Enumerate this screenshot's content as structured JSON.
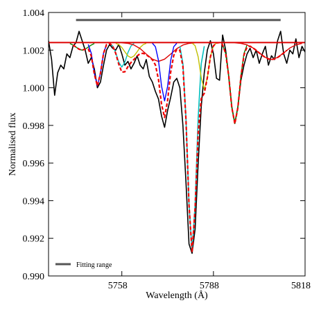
{
  "chart_data": {
    "type": "line",
    "x_label": "Wavelength (Å)",
    "y_label": "Normalised flux",
    "xlim": [
      5734,
      5818
    ],
    "ylim": [
      0.99,
      1.004
    ],
    "xticks": [
      5758,
      5788,
      5818
    ],
    "yticks": [
      {
        "value": 0.99,
        "label": "0.990"
      },
      0.992,
      0.994,
      0.996,
      0.998,
      {
        "value": 1,
        "label": "1.000"
      },
      1.002,
      1.004
    ],
    "legend": "lower left",
    "series": [
      {
        "color": "#000000",
        "style": "solid",
        "width": 1.6,
        "x": [
          5734,
          5735,
          5736,
          5737,
          5738,
          5739,
          5740,
          5741,
          5742,
          5743,
          5744,
          5745,
          5746,
          5747,
          5748,
          5749,
          5750,
          5751,
          5752,
          5753,
          5754,
          5755,
          5756,
          5757,
          5758,
          5759,
          5760,
          5761,
          5762,
          5763,
          5764,
          5765,
          5766,
          5767,
          5768,
          5769,
          5770,
          5771,
          5772,
          5773,
          5774,
          5775,
          5776,
          5777,
          5778,
          5779,
          5780,
          5781,
          5782,
          5783,
          5784,
          5785,
          5786,
          5787,
          5788,
          5789,
          5790,
          5791,
          5792,
          5793,
          5794,
          5795,
          5796,
          5797,
          5798,
          5799,
          5800,
          5801,
          5802,
          5803,
          5804,
          5805,
          5806,
          5807,
          5808,
          5809,
          5810,
          5811,
          5812,
          5813,
          5814,
          5815,
          5816,
          5817,
          5818
        ],
        "values": [
          1.0025,
          1.0015,
          0.9996,
          1.0008,
          1.0012,
          1.001,
          1.0018,
          1.0016,
          1.0022,
          1.0024,
          1.003,
          1.0025,
          1.002,
          1.0013,
          1.0016,
          1.001,
          1.0,
          1.0003,
          1.0012,
          1.002,
          1.0023,
          1.0021,
          1.002,
          1.0023,
          1.0018,
          1.0012,
          1.0014,
          1.001,
          1.0013,
          1.0017,
          1.0012,
          1.001,
          1.0015,
          1.0006,
          1.0003,
          0.9998,
          0.9994,
          0.9985,
          0.9979,
          0.9988,
          0.9995,
          1.0003,
          1.0005,
          1.0,
          0.998,
          0.995,
          0.9917,
          0.9912,
          0.9925,
          0.996,
          0.999,
          1.0008,
          1.002,
          1.0025,
          1.0018,
          1.0005,
          1.0004,
          1.0028,
          1.002,
          1.0006,
          0.999,
          0.9981,
          0.999,
          1.0004,
          1.0012,
          1.0018,
          1.0021,
          1.0016,
          1.002,
          1.0013,
          1.0018,
          1.0022,
          1.0012,
          1.0017,
          1.0015,
          1.0025,
          1.003,
          1.0018,
          1.0013,
          1.002,
          1.0018,
          1.0026,
          1.0016,
          1.0022,
          1.0019
        ]
      },
      {
        "color": "#008000",
        "style": "solid",
        "width": 1.4,
        "x": [
          5741,
          5742,
          5743,
          5744,
          5745,
          5746,
          5747,
          5748,
          5749
        ],
        "values": [
          1.00235,
          1.00227,
          1.00216,
          1.00205,
          1.002,
          1.00205,
          1.00216,
          1.00227,
          1.00235
        ]
      },
      {
        "color": "#0000ff",
        "style": "solid",
        "width": 1.4,
        "x": [
          5747,
          5748,
          5749,
          5750,
          5751,
          5752,
          5753
        ],
        "values": [
          1.0023,
          1.00183,
          1.00077,
          1.0001,
          1.00077,
          1.00183,
          1.0023
        ]
      },
      {
        "color": "#00bfbf",
        "style": "solid",
        "width": 1.4,
        "x": [
          5754,
          5755,
          5756,
          5757,
          5758,
          5759,
          5760,
          5761,
          5762
        ],
        "values": [
          1.00236,
          1.00222,
          1.00187,
          1.00136,
          1.0011,
          1.00136,
          1.00187,
          1.00222,
          1.00236
        ]
      },
      {
        "color": "#bfbf00",
        "style": "solid",
        "width": 1.4,
        "x": [
          5756,
          5757,
          5758,
          5759,
          5760,
          5761,
          5762,
          5763,
          5764,
          5765,
          5766
        ],
        "values": [
          1.00236,
          1.00229,
          1.00214,
          1.00191,
          1.00169,
          1.0016,
          1.00169,
          1.00191,
          1.00214,
          1.00229,
          1.00236
        ]
      },
      {
        "color": "#dd0000",
        "style": "solid",
        "width": 1.4,
        "x": [
          5758,
          5760,
          5762,
          5764,
          5766,
          5768,
          5770,
          5772,
          5774,
          5776,
          5778,
          5780,
          5782
        ],
        "values": [
          1.00239,
          1.00236,
          1.00227,
          1.00208,
          1.00179,
          1.00152,
          1.0014,
          1.00152,
          1.00179,
          1.00208,
          1.00227,
          1.00236,
          1.00239
        ]
      },
      {
        "color": "#0000ff",
        "style": "solid",
        "width": 1.4,
        "x": [
          5768,
          5769,
          5770,
          5771,
          5772,
          5773,
          5774,
          5775,
          5776
        ],
        "values": [
          1.00237,
          1.00218,
          1.00145,
          1.00009,
          0.9993,
          1.00009,
          1.00145,
          1.00218,
          1.00237
        ]
      },
      {
        "color": "#00bfbf",
        "style": "solid",
        "width": 1.6,
        "x": [
          5777,
          5778,
          5779,
          5780,
          5781,
          5782,
          5783,
          5784,
          5785
        ],
        "values": [
          1.00221,
          1.00128,
          0.9984,
          0.9938,
          0.9913,
          0.9938,
          0.9984,
          1.00128,
          1.00221
        ]
      },
      {
        "color": "#bfbf00",
        "style": "solid",
        "width": 1.4,
        "x": [
          5781,
          5782,
          5783,
          5784,
          5785,
          5786,
          5787,
          5788,
          5789
        ],
        "values": [
          1.00238,
          1.00223,
          1.00164,
          1.00054,
          0.9999,
          1.00054,
          1.00164,
          1.00223,
          1.00238
        ]
      },
      {
        "color": "#008000",
        "style": "solid",
        "width": 1.4,
        "x": [
          5791,
          5792,
          5793,
          5794,
          5795,
          5796,
          5797,
          5798,
          5799
        ],
        "values": [
          1.00228,
          1.00182,
          1.00063,
          0.99896,
          0.9981,
          0.99896,
          1.00063,
          1.00182,
          1.00228
        ]
      },
      {
        "color": "#dd0000",
        "style": "solid",
        "width": 1.4,
        "x": [
          5795,
          5797,
          5799,
          5801,
          5803,
          5805,
          5807,
          5809,
          5811,
          5813,
          5815,
          5817
        ],
        "values": [
          1.00239,
          1.00236,
          1.00228,
          1.00211,
          1.00185,
          1.00161,
          1.0015,
          1.00161,
          1.00185,
          1.00211,
          1.00228,
          1.00236
        ]
      },
      {
        "color": "#dd0000",
        "style": "solid",
        "width": 2,
        "x": [
          5734,
          5818
        ],
        "values": [
          1.0024,
          1.0024
        ]
      },
      {
        "color": "#ee0000",
        "style": "dashed",
        "width": 2.2,
        "x": [
          5742,
          5743,
          5744,
          5745,
          5746,
          5747,
          5748,
          5749,
          5750,
          5751,
          5752,
          5753,
          5754,
          5755,
          5756,
          5757,
          5758,
          5759,
          5760,
          5761,
          5762,
          5763,
          5764,
          5765,
          5766,
          5767,
          5768,
          5769,
          5770,
          5771,
          5772,
          5773,
          5774,
          5775,
          5776,
          5777,
          5778,
          5779,
          5780,
          5781,
          5782,
          5783,
          5784,
          5785,
          5786,
          5787,
          5788,
          5789,
          5790,
          5791,
          5792,
          5793,
          5794,
          5795,
          5796,
          5797,
          5798,
          5799,
          5800,
          5801,
          5802,
          5803,
          5804,
          5805,
          5806,
          5807,
          5808,
          5809,
          5810,
          5811,
          5812
        ],
        "values": [
          1.00227,
          1.00216,
          1.00205,
          1.002,
          1.00205,
          1.00206,
          1.00169,
          1.00072,
          1.0001,
          1.00077,
          1.00182,
          1.0023,
          1.00236,
          1.00222,
          1.00183,
          1.00125,
          1.00083,
          1.00085,
          1.00112,
          1.00134,
          1.00151,
          1.00169,
          1.00181,
          1.00183,
          1.00175,
          1.00164,
          1.00149,
          1.00121,
          1.00045,
          0.99912,
          0.99842,
          0.99933,
          1.00084,
          1.00172,
          1.00204,
          1.00199,
          1.00114,
          0.99832,
          0.99376,
          0.99126,
          0.99362,
          0.99764,
          0.99942,
          0.99971,
          1.00054,
          1.00164,
          1.00223,
          1.00238,
          1.0024,
          1.00228,
          1.00182,
          1.00063,
          0.99896,
          0.99809,
          0.99894,
          1.00059,
          1.00175,
          1.00216,
          1.00221,
          1.00211,
          1.00199,
          1.00185,
          1.00172,
          1.00161,
          1.00153,
          1.0015,
          1.00153,
          1.00161,
          1.00172,
          1.00185,
          1.00199
        ]
      },
      {
        "name": "Fitting range",
        "color": "#555555",
        "style": "solid",
        "width": 3,
        "x": [
          5743,
          5810
        ],
        "values": [
          1.0036,
          1.0036
        ]
      }
    ]
  }
}
